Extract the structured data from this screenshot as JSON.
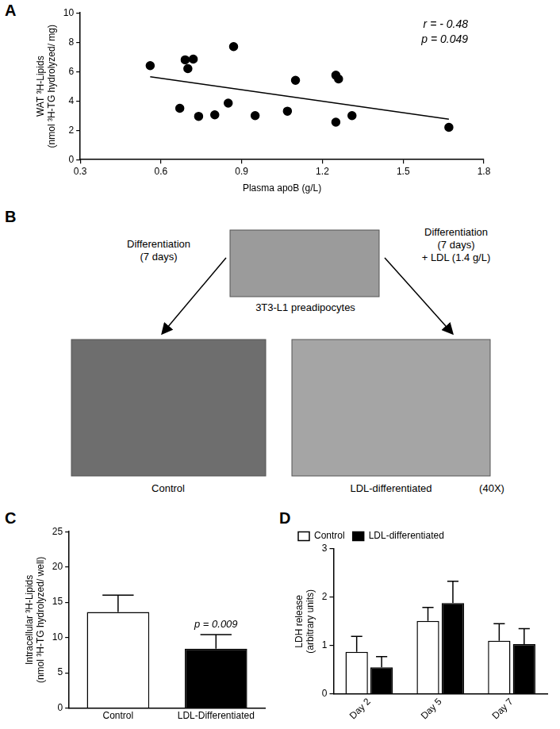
{
  "panel_labels": [
    "A",
    "B",
    "C",
    "D"
  ],
  "diagram": {
    "top_image_label": "3T3-L1 preadipocytes",
    "left_arrow_text": [
      "Differentiation",
      "(7 days)"
    ],
    "right_arrow_text": [
      "Differentiation",
      "(7 days)",
      "+ LDL (1.4 g/L)"
    ],
    "left_image_label": "Control",
    "right_image_label": "LDL-differentiated",
    "magnification": "(40X)"
  },
  "chart_data": [
    {
      "type": "scatter",
      "xlabel": "Plasma apoB (g/L)",
      "ylabel": [
        "WAT ³H-Lipids",
        "(nmol ³H-TG hydrolyzed/ mg)"
      ],
      "series": [
        {
          "type": "scatter",
          "color": "#000000",
          "marker": "circle",
          "x": [
            0.56,
            0.67,
            0.69,
            0.7,
            0.72,
            0.74,
            0.8,
            0.85,
            0.87,
            0.95,
            1.07,
            1.1,
            1.25,
            1.26,
            1.25,
            1.31,
            1.67
          ],
          "values": [
            6.4,
            3.5,
            6.8,
            6.2,
            6.85,
            2.95,
            3.05,
            3.85,
            7.7,
            3.0,
            3.3,
            5.4,
            5.75,
            5.5,
            2.55,
            3.0,
            2.2
          ]
        },
        {
          "type": "line",
          "color": "#000000",
          "line_style": "solid",
          "x": [
            0.56,
            1.67
          ],
          "values": [
            5.65,
            2.75
          ]
        }
      ],
      "xlim": [
        0.3,
        1.8
      ],
      "xticks": [
        0.3,
        0.6,
        0.9,
        1.2,
        1.5,
        1.8
      ],
      "ylim": [
        0,
        10
      ],
      "yticks": [
        0,
        2,
        4,
        6,
        8,
        10
      ],
      "grid": false,
      "annotations": [
        {
          "text": "r = - 0.48"
        },
        {
          "text": "p = 0.049"
        }
      ]
    },
    {
      "type": "bar",
      "categories": [
        "Control",
        "LDL-Differentiated"
      ],
      "values": [
        13.6,
        8.4
      ],
      "errors": [
        2.4,
        2.0
      ],
      "colors": [
        "#ffffff",
        "#000000"
      ],
      "ylabel": [
        "Intracellular ³H-Lipids",
        "(nmol ³H-TG hydrolyzed/ well)"
      ],
      "ylim": [
        0,
        25
      ],
      "yticks": [
        0,
        5,
        10,
        15,
        20,
        25
      ],
      "grid": false,
      "annotations": [
        {
          "text": "p = 0.009",
          "category": "LDL-Differentiated"
        }
      ]
    },
    {
      "type": "bar",
      "categories": [
        "Day 2",
        "Day 5",
        "Day 7"
      ],
      "series": [
        {
          "name": "Control",
          "color": "#ffffff",
          "values": [
            0.87,
            1.51,
            1.1
          ],
          "errors": [
            0.32,
            0.28,
            0.35
          ]
        },
        {
          "name": "LDL-differentiated",
          "color": "#000000",
          "values": [
            0.55,
            1.88,
            1.03
          ],
          "errors": [
            0.22,
            0.45,
            0.32
          ]
        }
      ],
      "ylabel": [
        "LDH release",
        "(arbitrary units)"
      ],
      "ylim": [
        0,
        3
      ],
      "yticks": [
        0,
        1,
        2,
        3
      ],
      "grid": false,
      "legend": "upper left"
    }
  ]
}
